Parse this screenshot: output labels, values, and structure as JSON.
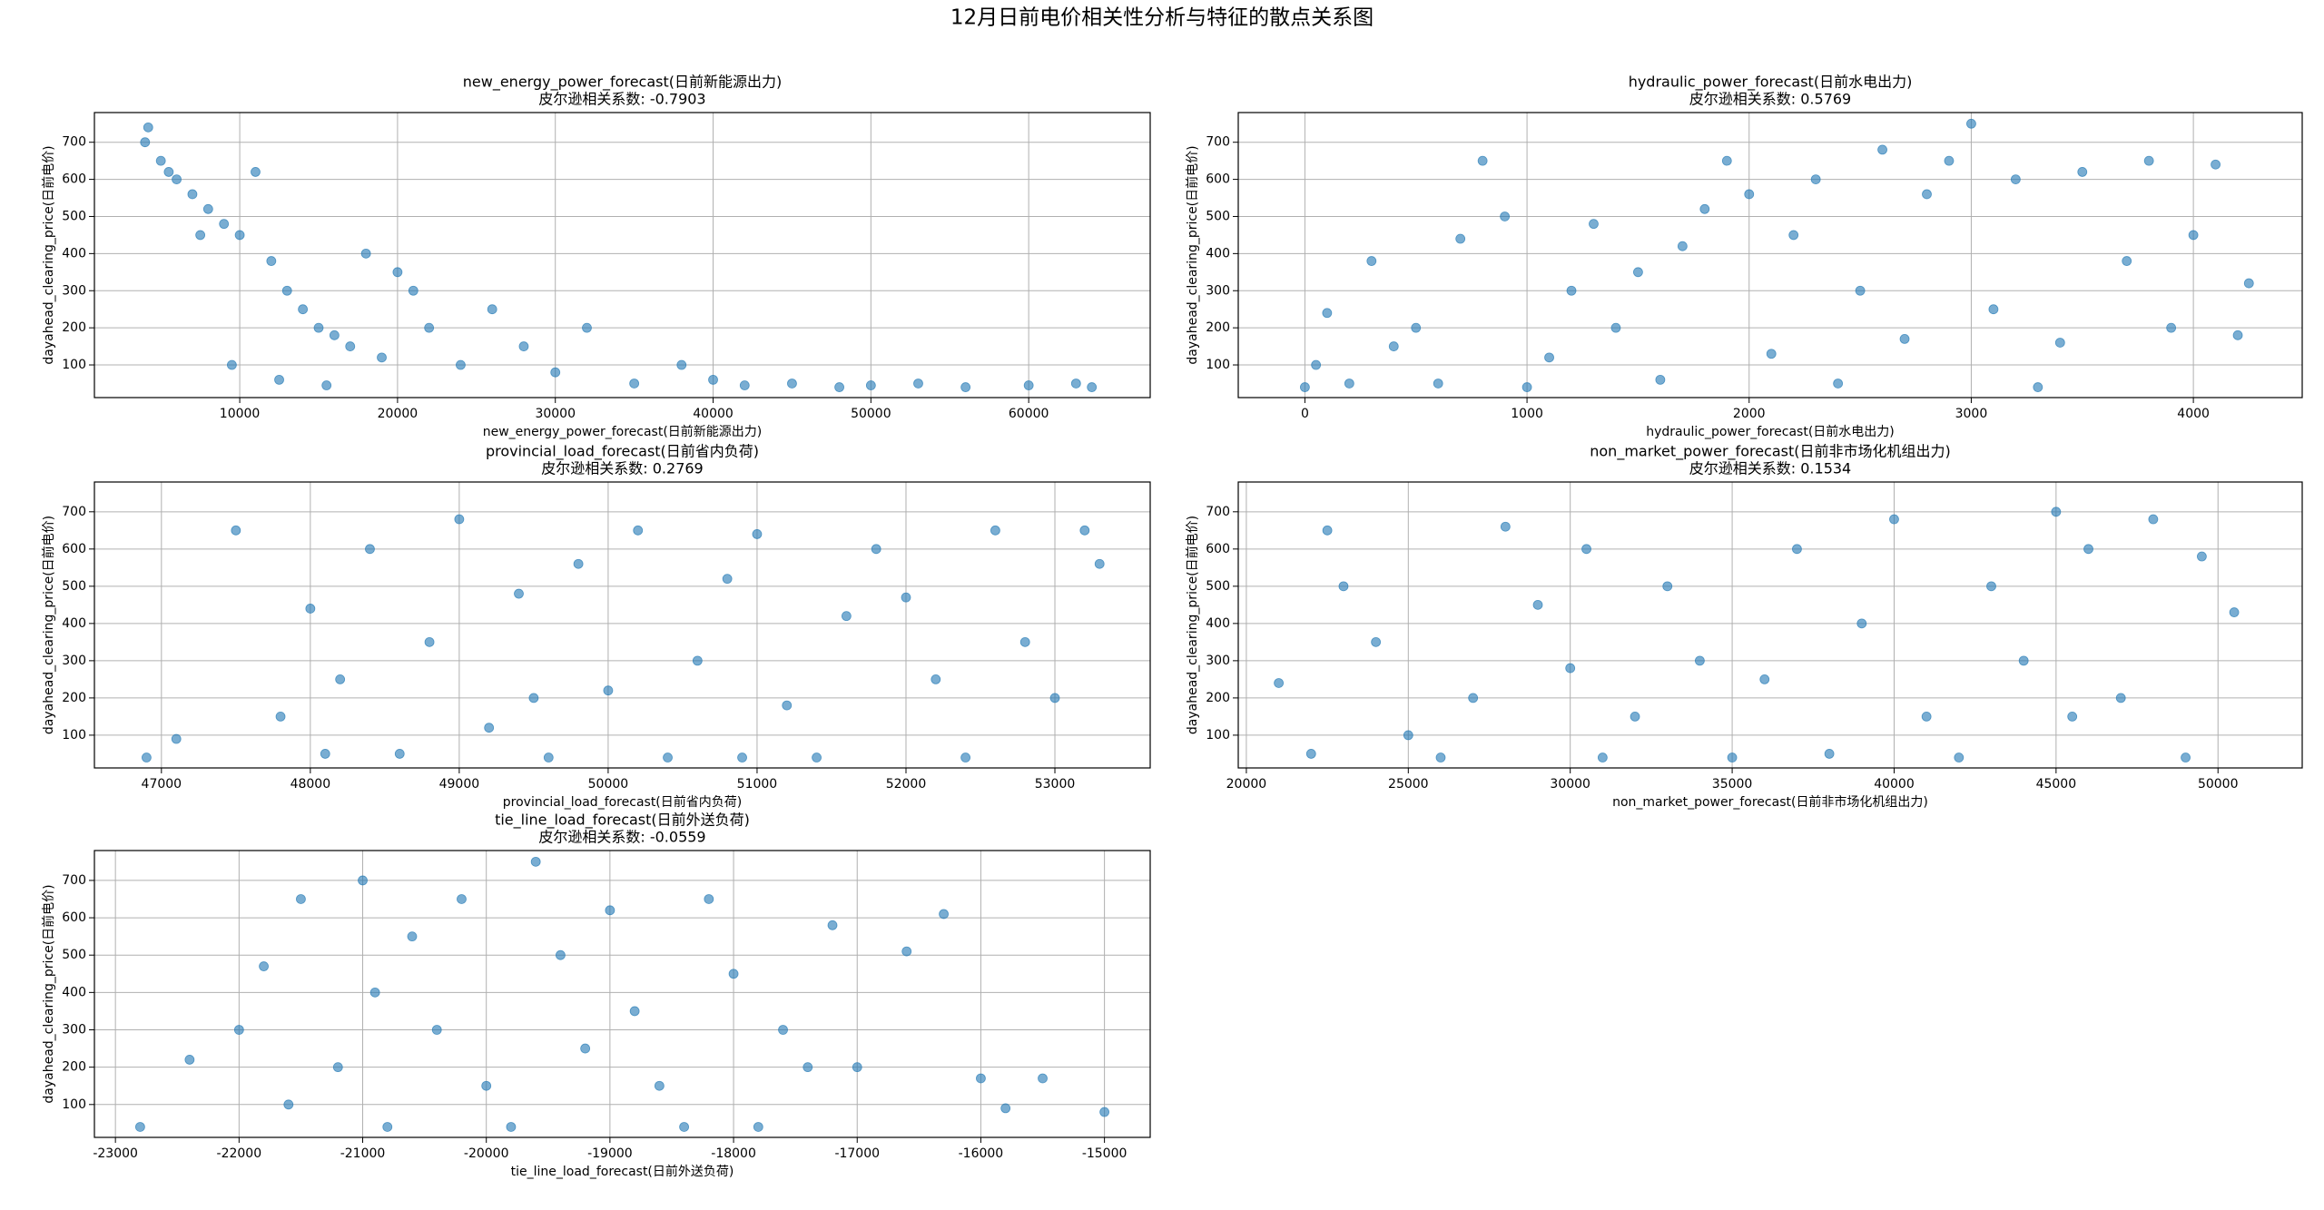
{
  "title": "12月日前电价相关性分析与特征的散点关系图",
  "chart_data": [
    {
      "type": "scatter",
      "title": "new_energy_power_forecast(日前新能源出力)",
      "subtitle": "皮尔逊相关系数: -0.7903",
      "xlabel": "new_energy_power_forecast(日前新能源出力)",
      "ylabel": "dayahead_clearing_price(日前电价)",
      "color": "#1f77b4",
      "grid": true,
      "x": [
        4000,
        5000,
        6000,
        7000,
        8000,
        9000,
        10000,
        11000,
        12000,
        13000,
        14000,
        15000,
        16000,
        17000,
        18000,
        19000,
        20000,
        21000,
        22000,
        24000,
        26000,
        28000,
        30000,
        32000,
        35000,
        38000,
        40000,
        42000,
        45000,
        48000,
        50000,
        53000,
        56000,
        60000,
        63000,
        64000,
        9500,
        12500,
        15500,
        7500,
        5500,
        4200
      ],
      "values": [
        700,
        650,
        600,
        560,
        520,
        480,
        450,
        620,
        380,
        300,
        250,
        200,
        180,
        150,
        400,
        120,
        350,
        300,
        200,
        100,
        250,
        150,
        80,
        200,
        50,
        100,
        60,
        45,
        50,
        40,
        45,
        50,
        40,
        45,
        50,
        40,
        100,
        60,
        45,
        450,
        620,
        740
      ],
      "xlim": [
        790,
        67700
      ],
      "ylim": [
        12,
        780
      ],
      "xticks": [
        10000,
        20000,
        30000,
        40000,
        50000,
        60000
      ],
      "yticks": [
        100,
        200,
        300,
        400,
        500,
        600,
        700
      ]
    },
    {
      "type": "scatter",
      "title": "hydraulic_power_forecast(日前水电出力)",
      "subtitle": "皮尔逊相关系数: 0.5769",
      "xlabel": "hydraulic_power_forecast(日前水电出力)",
      "ylabel": "dayahead_clearing_price(日前电价)",
      "color": "#1f77b4",
      "grid": true,
      "x": [
        0,
        50,
        100,
        200,
        300,
        400,
        500,
        600,
        700,
        800,
        900,
        1000,
        1100,
        1200,
        1300,
        1400,
        1500,
        1600,
        1700,
        1800,
        1900,
        2000,
        2100,
        2200,
        2300,
        2400,
        2500,
        2600,
        2700,
        2800,
        2900,
        3000,
        3100,
        3200,
        3300,
        3400,
        3500,
        3700,
        3800,
        3900,
        4000,
        4100,
        4200,
        4250
      ],
      "values": [
        40,
        100,
        240,
        50,
        380,
        150,
        200,
        50,
        440,
        650,
        500,
        40,
        120,
        300,
        480,
        200,
        350,
        60,
        420,
        520,
        650,
        560,
        130,
        450,
        600,
        50,
        300,
        680,
        170,
        560,
        650,
        750,
        250,
        600,
        40,
        160,
        620,
        380,
        650,
        200,
        450,
        640,
        180,
        320
      ],
      "xlim": [
        -300,
        4490
      ],
      "ylim": [
        12,
        780
      ],
      "xticks": [
        0,
        1000,
        2000,
        3000,
        4000
      ],
      "yticks": [
        100,
        200,
        300,
        400,
        500,
        600,
        700
      ]
    },
    {
      "type": "scatter",
      "title": "provincial_load_forecast(日前省内负荷)",
      "subtitle": "皮尔逊相关系数: 0.2769",
      "xlabel": "provincial_load_forecast(日前省内负荷)",
      "ylabel": "dayahead_clearing_price(日前电价)",
      "color": "#1f77b4",
      "grid": true,
      "x": [
        46900,
        47100,
        47500,
        47800,
        48000,
        48200,
        48400,
        48600,
        48800,
        49000,
        49200,
        49400,
        49600,
        49800,
        50000,
        50200,
        50400,
        50600,
        50800,
        51000,
        51200,
        51400,
        51600,
        51800,
        52000,
        52200,
        52400,
        52600,
        52800,
        53000,
        53200,
        53300,
        49500,
        48100,
        50900
      ],
      "values": [
        40,
        90,
        650,
        150,
        440,
        250,
        600,
        50,
        350,
        680,
        120,
        480,
        40,
        560,
        220,
        650,
        40,
        300,
        520,
        640,
        180,
        40,
        420,
        600,
        470,
        250,
        40,
        650,
        350,
        200,
        650,
        560,
        200,
        50,
        40
      ],
      "xlim": [
        46550,
        53640
      ],
      "ylim": [
        12,
        780
      ],
      "xticks": [
        47000,
        48000,
        49000,
        50000,
        51000,
        52000,
        53000
      ],
      "yticks": [
        100,
        200,
        300,
        400,
        500,
        600,
        700
      ]
    },
    {
      "type": "scatter",
      "title": "non_market_power_forecast(日前非市场化机组出力)",
      "subtitle": "皮尔逊相关系数: 0.1534",
      "xlabel": "non_market_power_forecast(日前非市场化机组出力)",
      "ylabel": "dayahead_clearing_price(日前电价)",
      "color": "#1f77b4",
      "grid": true,
      "x": [
        21000,
        22000,
        22500,
        23000,
        24000,
        25000,
        26000,
        27000,
        28000,
        29000,
        30000,
        30500,
        31000,
        32000,
        33000,
        34000,
        35000,
        36000,
        37000,
        38000,
        39000,
        40000,
        41000,
        42000,
        43000,
        44000,
        45000,
        45500,
        46000,
        47000,
        48000,
        49000,
        49500,
        50500
      ],
      "values": [
        240,
        50,
        650,
        500,
        350,
        100,
        40,
        200,
        660,
        450,
        280,
        600,
        40,
        150,
        500,
        300,
        40,
        250,
        600,
        50,
        400,
        680,
        150,
        40,
        500,
        300,
        700,
        150,
        600,
        200,
        680,
        40,
        580,
        430
      ],
      "xlim": [
        19750,
        52600
      ],
      "ylim": [
        12,
        780
      ],
      "xticks": [
        20000,
        25000,
        30000,
        35000,
        40000,
        45000,
        50000
      ],
      "yticks": [
        100,
        200,
        300,
        400,
        500,
        600,
        700
      ]
    },
    {
      "type": "scatter",
      "title": "tie_line_load_forecast(日前外送负荷)",
      "subtitle": "皮尔逊相关系数: -0.0559",
      "xlabel": "tie_line_load_forecast(日前外送负荷)",
      "ylabel": "dayahead_clearing_price(日前电价)",
      "color": "#1f77b4",
      "grid": true,
      "x": [
        -22800,
        -22400,
        -22000,
        -21800,
        -21500,
        -21200,
        -21000,
        -20800,
        -20600,
        -20400,
        -20200,
        -20000,
        -19800,
        -19600,
        -19400,
        -19200,
        -19000,
        -18800,
        -18600,
        -18400,
        -18200,
        -18000,
        -17800,
        -17600,
        -17400,
        -17200,
        -17000,
        -16600,
        -16300,
        -16000,
        -15800,
        -15500,
        -15000,
        -21600,
        -20900
      ],
      "values": [
        40,
        220,
        300,
        470,
        650,
        200,
        700,
        40,
        550,
        300,
        650,
        150,
        40,
        750,
        500,
        250,
        620,
        350,
        150,
        40,
        650,
        450,
        40,
        300,
        200,
        580,
        200,
        510,
        610,
        170,
        90,
        170,
        80,
        100,
        400
      ],
      "xlim": [
        -23170,
        -14630
      ],
      "ylim": [
        12,
        780
      ],
      "xticks": [
        -23000,
        -22000,
        -21000,
        -20000,
        -19000,
        -18000,
        -17000,
        -16000,
        -15000
      ],
      "yticks": [
        100,
        200,
        300,
        400,
        500,
        600,
        700
      ]
    }
  ]
}
